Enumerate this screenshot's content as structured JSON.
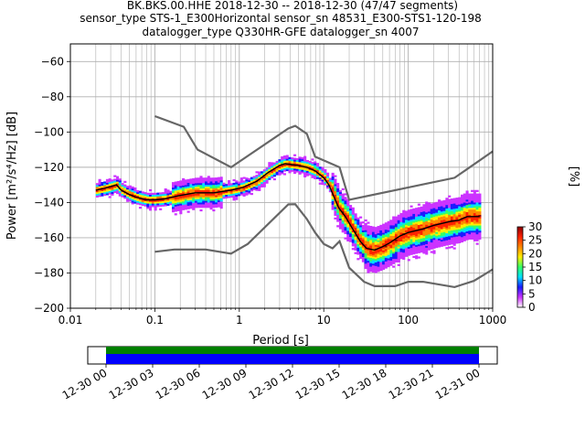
{
  "title_lines": [
    "BK.BKS.00.HHE   2018-12-30 -- 2018-12-30  (47/47 segments)",
    "sensor_type STS-1_E300Horizontal sensor_sn 48531_E300-STS1-120-198",
    "datalogger_type Q330HR-GFE datalogger_sn 4007"
  ],
  "colors": {
    "noise_model": "#666666",
    "mean_line": "#000000",
    "grid": "#b0b0b0",
    "colormap": [
      "#ffffff",
      "#cc33ff",
      "#1a1aff",
      "#00e0ff",
      "#33ff66",
      "#ffee00",
      "#ff8800",
      "#ff2200",
      "#8b0000"
    ]
  },
  "chart_data": {
    "type": "heatmap",
    "xlabel": "Period [s]",
    "ylabel": "Power [m²/s⁴/Hz] [dB]",
    "x_scale": "log",
    "xlim": [
      0.01,
      1000
    ],
    "ylim": [
      -200,
      -50
    ],
    "grid": true,
    "x_ticks": [
      {
        "value": 0.01,
        "label": "0.01"
      },
      {
        "value": 0.1,
        "label": "0.1"
      },
      {
        "value": 1,
        "label": "1"
      },
      {
        "value": 10,
        "label": "10"
      },
      {
        "value": 100,
        "label": "100"
      },
      {
        "value": 1000,
        "label": "1000"
      }
    ],
    "y_ticks": [
      -60,
      -80,
      -100,
      -120,
      -140,
      -160,
      -180,
      -200
    ],
    "colorbar": {
      "label": "[%]",
      "min": 0,
      "max": 30,
      "ticks": [
        0,
        5,
        10,
        15,
        20,
        25,
        30
      ]
    },
    "high_noise_model": [
      [
        0.1,
        -91
      ],
      [
        0.22,
        -97
      ],
      [
        0.32,
        -110
      ],
      [
        0.8,
        -120
      ],
      [
        3.8,
        -98
      ],
      [
        4.6,
        -96.5
      ],
      [
        6.3,
        -101
      ],
      [
        7.9,
        -114
      ],
      [
        15.4,
        -120
      ],
      [
        20,
        -138.5
      ],
      [
        354,
        -126
      ],
      [
        1000,
        -111
      ]
    ],
    "low_noise_model": [
      [
        0.1,
        -168
      ],
      [
        0.17,
        -166.7
      ],
      [
        0.4,
        -166.7
      ],
      [
        0.8,
        -169
      ],
      [
        1.26,
        -163.5
      ],
      [
        3.8,
        -141.1
      ],
      [
        4.6,
        -141
      ],
      [
        6.3,
        -149.4
      ],
      [
        7.9,
        -157
      ],
      [
        10,
        -163.5
      ],
      [
        12.7,
        -166
      ],
      [
        15.4,
        -162
      ],
      [
        20,
        -177
      ],
      [
        30,
        -185
      ],
      [
        40,
        -187.5
      ],
      [
        70,
        -187.5
      ],
      [
        100,
        -185
      ],
      [
        150,
        -185
      ],
      [
        354,
        -188
      ],
      [
        600,
        -184.5
      ],
      [
        1000,
        -178
      ]
    ],
    "mean_psd": [
      [
        0.02,
        -133
      ],
      [
        0.025,
        -132
      ],
      [
        0.03,
        -131
      ],
      [
        0.035,
        -130
      ],
      [
        0.04,
        -133
      ],
      [
        0.05,
        -135.5
      ],
      [
        0.06,
        -137
      ],
      [
        0.08,
        -138.5
      ],
      [
        0.1,
        -138.5
      ],
      [
        0.13,
        -138
      ],
      [
        0.16,
        -137
      ],
      [
        0.2,
        -136
      ],
      [
        0.3,
        -134.5
      ],
      [
        0.5,
        -134.5
      ],
      [
        0.8,
        -133
      ],
      [
        1.1,
        -131.5
      ],
      [
        1.6,
        -128
      ],
      [
        2.2,
        -123
      ],
      [
        3,
        -119
      ],
      [
        3.5,
        -118
      ],
      [
        4.2,
        -118.5
      ],
      [
        5,
        -119
      ],
      [
        6.3,
        -120
      ],
      [
        7.9,
        -122
      ],
      [
        10,
        -126
      ],
      [
        11.5,
        -130
      ],
      [
        13,
        -136
      ],
      [
        15,
        -143
      ],
      [
        18,
        -148
      ],
      [
        22,
        -155
      ],
      [
        27,
        -162
      ],
      [
        32,
        -166
      ],
      [
        40,
        -167
      ],
      [
        50,
        -165
      ],
      [
        60,
        -163
      ],
      [
        80,
        -159
      ],
      [
        100,
        -157
      ],
      [
        150,
        -155
      ],
      [
        200,
        -153
      ],
      [
        300,
        -151
      ],
      [
        400,
        -150
      ],
      [
        500,
        -148
      ],
      [
        700,
        -148
      ]
    ],
    "time_axis": {
      "tick_labels": [
        "12-30 00",
        "12-30 03",
        "12-30 06",
        "12-30 09",
        "12-30 12",
        "12-30 15",
        "12-30 18",
        "12-30 21",
        "12-31 00"
      ],
      "data_coverage": "full"
    }
  }
}
